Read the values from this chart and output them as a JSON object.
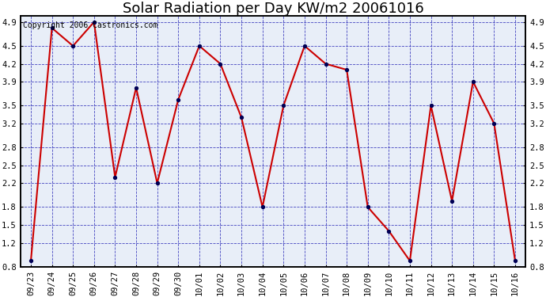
{
  "title": "Solar Radiation per Day KW/m2 20061016",
  "copyright": "Copyright 2006 Castronics.com",
  "x_labels": [
    "09/23",
    "09/24",
    "09/25",
    "09/26",
    "09/27",
    "09/28",
    "09/29",
    "09/30",
    "10/01",
    "10/02",
    "10/03",
    "10/04",
    "10/05",
    "10/06",
    "10/07",
    "10/08",
    "10/09",
    "10/10",
    "10/11",
    "10/12",
    "10/13",
    "10/14",
    "10/15",
    "10/16"
  ],
  "y_values": [
    0.9,
    4.8,
    4.5,
    4.9,
    2.3,
    3.8,
    2.2,
    3.6,
    4.5,
    4.2,
    3.3,
    1.8,
    3.5,
    4.5,
    4.2,
    4.1,
    1.8,
    1.4,
    0.9,
    3.5,
    1.9,
    3.9,
    3.2,
    0.9
  ],
  "ylim": [
    0.8,
    5.0
  ],
  "yticks": [
    0.8,
    1.2,
    1.5,
    1.8,
    2.2,
    2.5,
    2.8,
    3.2,
    3.5,
    3.9,
    4.2,
    4.5,
    4.9
  ],
  "line_color": "#cc0000",
  "marker_color": "#000055",
  "bg_color": "#e8eef8",
  "grid_color": "#3333bb",
  "title_fontsize": 13,
  "copyright_fontsize": 7,
  "tick_fontsize": 7.5
}
